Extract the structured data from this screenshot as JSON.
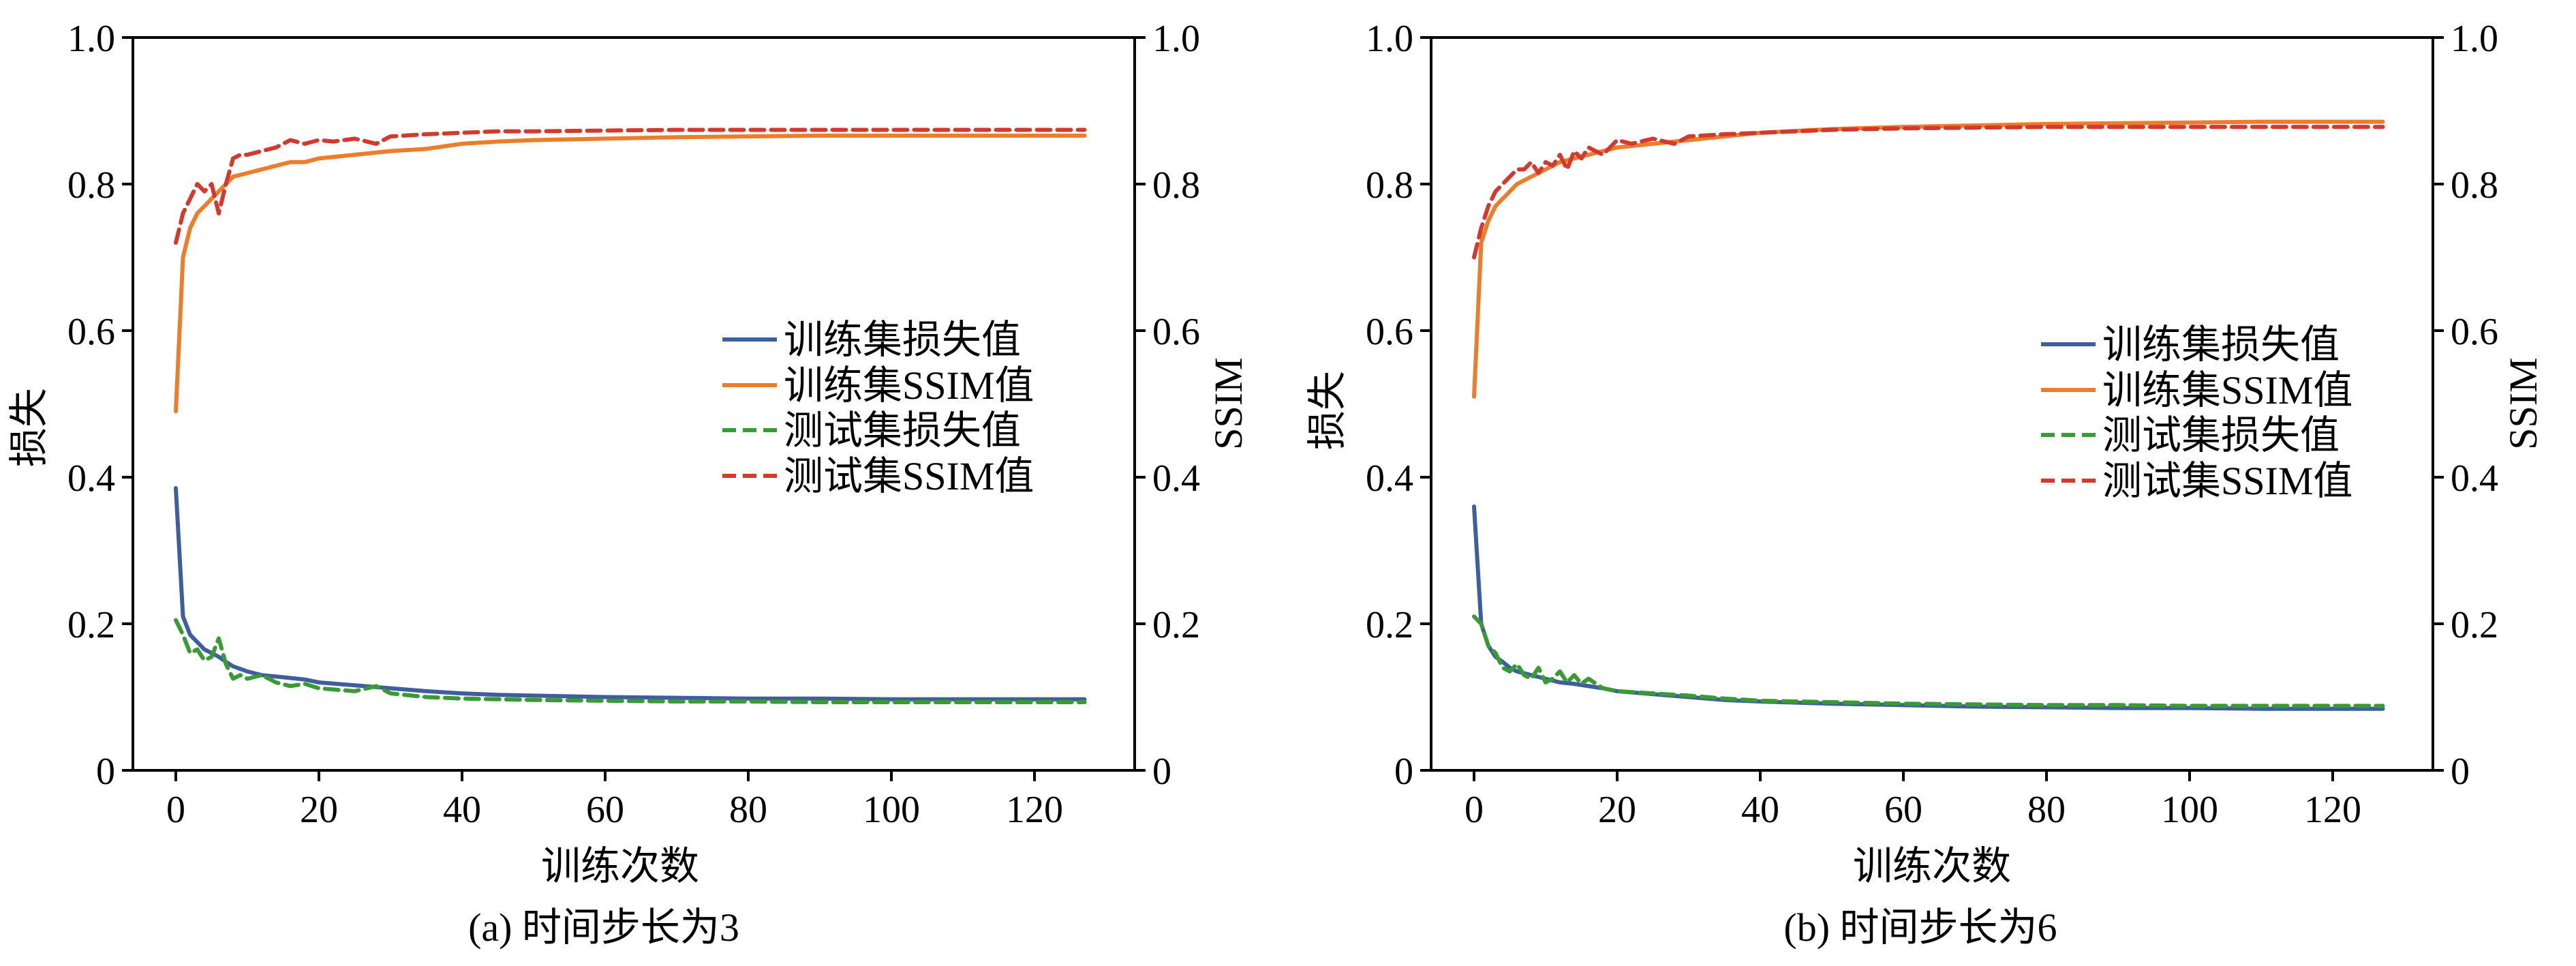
{
  "colors": {
    "train_loss": "#3e5f9c",
    "train_ssim": "#ee7d2b",
    "test_loss": "#3a9a35",
    "test_ssim": "#d23a2e"
  },
  "chart_data": [
    {
      "type": "line",
      "caption": "(a) 时间步长为3",
      "xlabel": "训练次数",
      "ylabel": "损失",
      "y2label": "SSIM",
      "xlim": [
        -6,
        134
      ],
      "ylim": [
        0,
        1.0
      ],
      "y2lim": [
        0,
        1.0
      ],
      "xticks": [
        0,
        20,
        40,
        60,
        80,
        100,
        120
      ],
      "yticks": [
        0,
        0.2,
        0.4,
        0.6,
        0.8,
        1.0
      ],
      "ytick_labels": [
        "0",
        "0.2",
        "0.4",
        "0.6",
        "0.8",
        "1.0"
      ],
      "y2ticks": [
        0,
        0.2,
        0.4,
        0.6,
        0.8,
        1.0
      ],
      "y2tick_labels": [
        "0",
        "0.2",
        "0.4",
        "0.6",
        "0.8",
        "1.0"
      ],
      "legend": [
        "训练集损失值",
        "训练集SSIM值",
        "测试集损失值",
        "测试集SSIM值"
      ],
      "legend_position": "right-middle",
      "series": [
        {
          "name": "训练集损失值",
          "axis": "left",
          "style": "solid",
          "x": [
            0,
            1,
            2,
            3,
            4,
            5,
            6,
            7,
            8,
            10,
            12,
            14,
            16,
            18,
            20,
            25,
            30,
            35,
            40,
            45,
            50,
            60,
            70,
            80,
            90,
            100,
            110,
            120,
            127
          ],
          "y": [
            0.385,
            0.21,
            0.185,
            0.175,
            0.165,
            0.16,
            0.155,
            0.148,
            0.142,
            0.135,
            0.13,
            0.128,
            0.126,
            0.124,
            0.12,
            0.116,
            0.112,
            0.108,
            0.105,
            0.103,
            0.102,
            0.1,
            0.099,
            0.098,
            0.098,
            0.097,
            0.097,
            0.097,
            0.097
          ]
        },
        {
          "name": "训练集SSIM值",
          "axis": "right",
          "style": "solid",
          "x": [
            0,
            1,
            2,
            3,
            4,
            5,
            6,
            7,
            8,
            10,
            12,
            14,
            16,
            18,
            20,
            25,
            30,
            35,
            40,
            45,
            50,
            60,
            70,
            80,
            90,
            100,
            110,
            120,
            127
          ],
          "y": [
            0.49,
            0.7,
            0.74,
            0.76,
            0.77,
            0.78,
            0.79,
            0.8,
            0.81,
            0.815,
            0.82,
            0.825,
            0.83,
            0.83,
            0.835,
            0.84,
            0.845,
            0.848,
            0.855,
            0.858,
            0.86,
            0.862,
            0.864,
            0.865,
            0.866,
            0.866,
            0.866,
            0.866,
            0.866
          ]
        },
        {
          "name": "测试集损失值",
          "axis": "left",
          "style": "dashed",
          "x": [
            0,
            1,
            2,
            3,
            4,
            5,
            6,
            7,
            8,
            9,
            10,
            12,
            14,
            16,
            18,
            20,
            25,
            28,
            30,
            35,
            40,
            50,
            60,
            70,
            80,
            90,
            100,
            110,
            120,
            127
          ],
          "y": [
            0.205,
            0.185,
            0.16,
            0.165,
            0.15,
            0.155,
            0.18,
            0.145,
            0.125,
            0.13,
            0.125,
            0.13,
            0.12,
            0.115,
            0.118,
            0.112,
            0.108,
            0.115,
            0.105,
            0.1,
            0.098,
            0.096,
            0.095,
            0.094,
            0.094,
            0.093,
            0.093,
            0.093,
            0.093,
            0.093
          ]
        },
        {
          "name": "测试集SSIM值",
          "axis": "right",
          "style": "dashed",
          "x": [
            0,
            1,
            2,
            3,
            4,
            5,
            6,
            7,
            8,
            9,
            10,
            12,
            14,
            16,
            18,
            20,
            22,
            25,
            28,
            30,
            35,
            40,
            45,
            50,
            60,
            70,
            80,
            90,
            100,
            110,
            120,
            127
          ],
          "y": [
            0.72,
            0.76,
            0.78,
            0.8,
            0.79,
            0.8,
            0.76,
            0.8,
            0.835,
            0.84,
            0.84,
            0.845,
            0.85,
            0.86,
            0.855,
            0.86,
            0.858,
            0.862,
            0.855,
            0.865,
            0.868,
            0.87,
            0.872,
            0.872,
            0.873,
            0.874,
            0.874,
            0.874,
            0.874,
            0.874,
            0.874,
            0.874
          ]
        }
      ]
    },
    {
      "type": "line",
      "caption": "(b) 时间步长为6",
      "xlabel": "训练次数",
      "ylabel": "损失",
      "y2label": "SSIM",
      "xlim": [
        -6,
        134
      ],
      "ylim": [
        0,
        1.0
      ],
      "y2lim": [
        0,
        1.0
      ],
      "xticks": [
        0,
        20,
        40,
        60,
        80,
        100,
        120
      ],
      "yticks": [
        0,
        0.2,
        0.4,
        0.6,
        0.8,
        1.0
      ],
      "ytick_labels": [
        "0",
        "0.2",
        "0.4",
        "0.6",
        "0.8",
        "1.0"
      ],
      "y2ticks": [
        0,
        0.2,
        0.4,
        0.6,
        0.8,
        1.0
      ],
      "y2tick_labels": [
        "0",
        "0.2",
        "0.4",
        "0.6",
        "0.8",
        "1.0"
      ],
      "legend": [
        "训练集损失值",
        "训练集SSIM值",
        "测试集损失值",
        "测试集SSIM值"
      ],
      "legend_position": "right-middle",
      "series": [
        {
          "name": "训练集损失值",
          "axis": "left",
          "style": "solid",
          "x": [
            0,
            1,
            2,
            3,
            4,
            5,
            6,
            8,
            10,
            12,
            14,
            16,
            18,
            20,
            25,
            30,
            35,
            40,
            50,
            60,
            70,
            80,
            90,
            100,
            110,
            120,
            127
          ],
          "y": [
            0.36,
            0.2,
            0.17,
            0.155,
            0.148,
            0.14,
            0.135,
            0.13,
            0.125,
            0.12,
            0.118,
            0.115,
            0.112,
            0.108,
            0.104,
            0.1,
            0.096,
            0.094,
            0.091,
            0.089,
            0.087,
            0.086,
            0.085,
            0.085,
            0.084,
            0.084,
            0.084
          ]
        },
        {
          "name": "训练集SSIM值",
          "axis": "right",
          "style": "solid",
          "x": [
            0,
            1,
            2,
            3,
            4,
            5,
            6,
            8,
            10,
            12,
            14,
            16,
            18,
            20,
            25,
            30,
            35,
            40,
            50,
            60,
            70,
            80,
            90,
            100,
            110,
            120,
            127
          ],
          "y": [
            0.51,
            0.72,
            0.75,
            0.77,
            0.78,
            0.79,
            0.8,
            0.81,
            0.82,
            0.83,
            0.835,
            0.84,
            0.845,
            0.85,
            0.855,
            0.86,
            0.865,
            0.87,
            0.875,
            0.878,
            0.88,
            0.882,
            0.883,
            0.884,
            0.885,
            0.885,
            0.885
          ]
        },
        {
          "name": "测试集损失值",
          "axis": "left",
          "style": "dashed",
          "x": [
            0,
            1,
            2,
            3,
            4,
            5,
            6,
            7,
            8,
            9,
            10,
            11,
            12,
            13,
            14,
            15,
            16,
            18,
            20,
            25,
            30,
            35,
            40,
            50,
            60,
            70,
            80,
            90,
            100,
            110,
            120,
            127
          ],
          "y": [
            0.21,
            0.2,
            0.17,
            0.16,
            0.14,
            0.135,
            0.145,
            0.13,
            0.125,
            0.14,
            0.12,
            0.125,
            0.135,
            0.12,
            0.13,
            0.118,
            0.125,
            0.112,
            0.108,
            0.105,
            0.102,
            0.098,
            0.095,
            0.093,
            0.091,
            0.09,
            0.089,
            0.089,
            0.088,
            0.088,
            0.088,
            0.088
          ]
        },
        {
          "name": "测试集SSIM值",
          "axis": "right",
          "style": "dashed",
          "x": [
            0,
            1,
            2,
            3,
            4,
            5,
            6,
            7,
            8,
            9,
            10,
            11,
            12,
            13,
            14,
            15,
            16,
            18,
            20,
            22,
            25,
            28,
            30,
            35,
            40,
            45,
            50,
            60,
            70,
            80,
            90,
            100,
            110,
            120,
            127
          ],
          "y": [
            0.7,
            0.74,
            0.77,
            0.79,
            0.8,
            0.81,
            0.82,
            0.82,
            0.83,
            0.815,
            0.83,
            0.825,
            0.84,
            0.82,
            0.845,
            0.835,
            0.85,
            0.84,
            0.86,
            0.855,
            0.862,
            0.855,
            0.865,
            0.868,
            0.87,
            0.872,
            0.874,
            0.876,
            0.877,
            0.878,
            0.878,
            0.878,
            0.878,
            0.878,
            0.878
          ]
        }
      ]
    }
  ]
}
